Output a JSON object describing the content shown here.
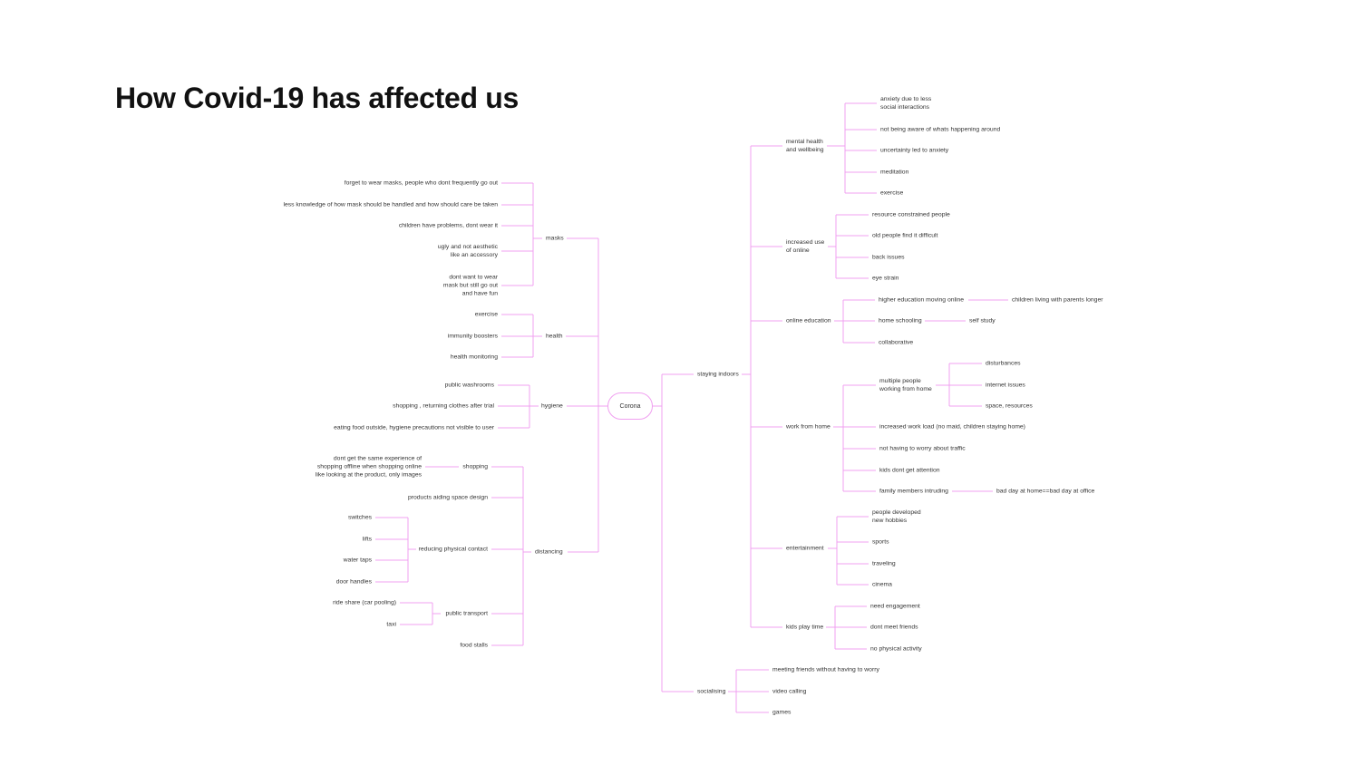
{
  "title": "How Covid-19 has affected us",
  "line_color": "#f0a0f0",
  "center": "Corona",
  "left": {
    "masks": {
      "label": "masks",
      "items": [
        "forget to wear masks, people who dont frequently go out",
        "less knowledge of how mask should be handled and how should care be taken",
        "children have problems, dont wear it",
        "ugly and not aesthetic\nlike an accessory",
        "dont want to wear\nmask but still go out\nand have fun"
      ]
    },
    "health": {
      "label": "health",
      "items": [
        "exercise",
        "immunity boosters",
        "health monitoring"
      ]
    },
    "hygiene": {
      "label": "hygiene",
      "items": [
        "public washrooms",
        "shopping , returning clothes after trial",
        "eating food outside, hygiene precautions not visible to user"
      ]
    },
    "distancing": {
      "label": "distancing",
      "shopping": {
        "label": "shopping",
        "detail": "dont get the same experience of\nshopping offline when shopping online\nlike looking at the product, only images"
      },
      "products": "products aiding space design",
      "reducing": {
        "label": "reducing physical contact",
        "items": [
          "switches",
          "lifts",
          "water taps",
          "door handles"
        ]
      },
      "transport": {
        "label": "public transport",
        "items": [
          "ride share (car pooling)",
          "taxi"
        ]
      },
      "food": "food stalls"
    }
  },
  "right": {
    "staying_indoors": {
      "label": "staying indoors",
      "mental": {
        "label": "mental health\nand wellbeing",
        "items": [
          "anxiety due to less\nsocial interactions",
          "not being aware of whats happening around",
          "uncertainty led to anxiety",
          "meditation",
          "exercise"
        ]
      },
      "online_use": {
        "label": "increased use\nof online",
        "items": [
          "resource constrained people",
          "old people find it difficult",
          "back issues",
          "eye strain"
        ]
      },
      "education": {
        "label": "online education",
        "higher": "higher education moving online",
        "higher_sub": "children living with parents longer",
        "home": "home schooling",
        "home_sub": "self study",
        "collab": "collaborative"
      },
      "wfh": {
        "label": "work from home",
        "multiple": {
          "label": "multiple people\nworking from home",
          "items": [
            "disturbances",
            "internet issues",
            "space, resources"
          ]
        },
        "workload": "increased work load (no maid, children staying home)",
        "traffic": "not having to worry about traffic",
        "kids": "kids dont get attention",
        "family": "family members intruding",
        "family_sub": "bad day at home==bad day at office"
      },
      "entertainment": {
        "label": "entertainment",
        "items": [
          "people developed\nnew hobbies",
          "sports",
          "traveling",
          "cinema"
        ]
      },
      "kids_play": {
        "label": "kids play time",
        "items": [
          "need engagement",
          "dont meet friends",
          "no physical activity"
        ]
      }
    },
    "socialising": {
      "label": "socialising",
      "items": [
        "meeting friends without having to worry",
        "video calling",
        "games"
      ]
    }
  }
}
